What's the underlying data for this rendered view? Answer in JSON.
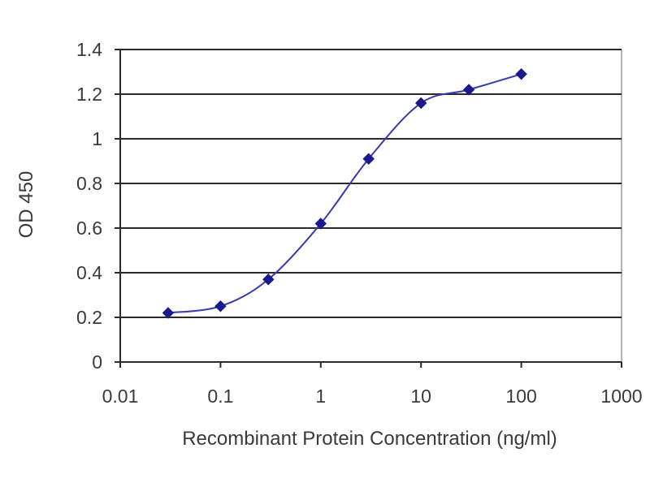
{
  "chart_data": {
    "type": "scatter",
    "title": "",
    "xlabel": "Recombinant Protein Concentration (ng/ml)",
    "ylabel": "OD 450",
    "x_scale": "log",
    "xlim": [
      0.01,
      1000
    ],
    "ylim": [
      0,
      1.4
    ],
    "x_ticks": [
      0.01,
      0.1,
      1,
      10,
      100,
      1000
    ],
    "x_tick_labels": [
      "0.01",
      "0.1",
      "1",
      "10",
      "100",
      "1000"
    ],
    "y_ticks": [
      0,
      0.2,
      0.4,
      0.6,
      0.8,
      1,
      1.2,
      1.4
    ],
    "y_tick_labels": [
      "0",
      "0.2",
      "0.4",
      "0.6",
      "0.8",
      "1",
      "1.2",
      "1.4"
    ],
    "grid": "horizontal",
    "legend": "none",
    "series": [
      {
        "x": [
          0.03,
          0.1,
          0.3,
          1,
          3,
          10,
          30,
          100
        ],
        "y": [
          0.22,
          0.25,
          0.37,
          0.62,
          0.91,
          1.16,
          1.22,
          1.29
        ],
        "marker": "diamond",
        "fitted_curve": true
      }
    ],
    "colors": {
      "marker": "#1a1a8c",
      "curve": "#3a3ab0",
      "grid": "#2a2a2a",
      "axis": "#2a2a2a",
      "frame": "#9a9a9a"
    }
  }
}
